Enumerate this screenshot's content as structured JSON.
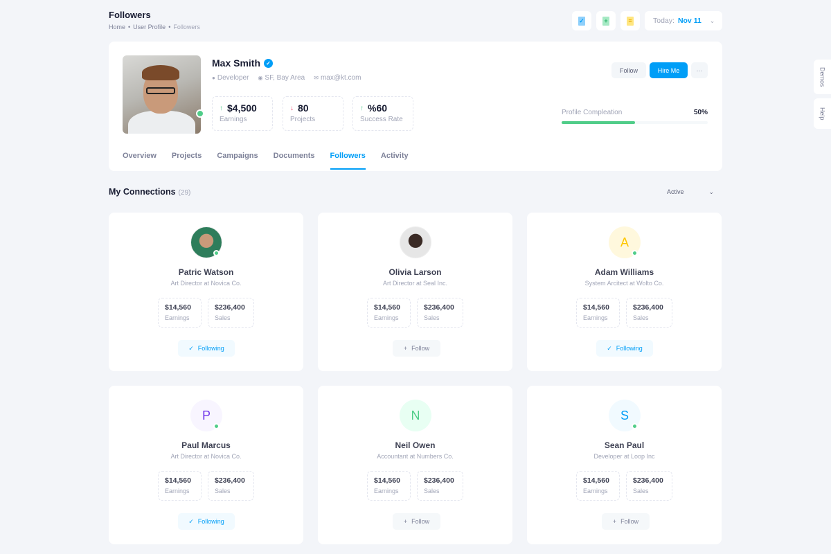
{
  "page": {
    "title": "Followers",
    "breadcrumb": [
      "Home",
      "User Profile",
      "Followers"
    ]
  },
  "toolbar": {
    "date_label": "Today:",
    "date_value": "Nov 11",
    "icons": [
      "file-check-icon",
      "file-add-icon",
      "file-text-icon"
    ]
  },
  "profile": {
    "name": "Max Smith",
    "role": "Developer",
    "location": "SF, Bay Area",
    "email": "max@kt.com",
    "stats": [
      {
        "value": "$4,500",
        "label": "Earnings",
        "trend": "up"
      },
      {
        "value": "80",
        "label": "Projects",
        "trend": "down"
      },
      {
        "value": "%60",
        "label": "Success Rate",
        "trend": "up"
      }
    ],
    "follow_label": "Follow",
    "hire_label": "Hire Me",
    "more_label": "···",
    "completion_label": "Profile Compleation",
    "completion_value": "50%",
    "completion": 50
  },
  "tabs": [
    {
      "label": "Overview"
    },
    {
      "label": "Projects"
    },
    {
      "label": "Campaigns"
    },
    {
      "label": "Documents"
    },
    {
      "label": "Followers",
      "active": true
    },
    {
      "label": "Activity"
    }
  ],
  "side": {
    "demos": "Demos",
    "help": "Help"
  },
  "connections": {
    "title": "My Connections",
    "count": "(29)",
    "filter": "Active",
    "items": [
      {
        "name": "Patric Watson",
        "role": "Art Director at Novica Co.",
        "earnings": "$14,560",
        "sales": "$236,400",
        "button": "Following",
        "following": true,
        "avatar": "photo",
        "online": true,
        "colors": [
          "#2e7d5b",
          "#c99a7a"
        ]
      },
      {
        "name": "Olivia Larson",
        "role": "Art Director at Seal Inc.",
        "earnings": "$14,560",
        "sales": "$236,400",
        "button": "Follow",
        "following": false,
        "avatar": "photo",
        "online": false,
        "colors": [
          "#e6e6e6",
          "#3a2a25"
        ]
      },
      {
        "name": "Adam Williams",
        "role": "System Arcitect at Wolto Co.",
        "earnings": "$14,560",
        "sales": "$236,400",
        "button": "Following",
        "following": true,
        "avatar": "A",
        "online": true,
        "colors": [
          "#fff8dd",
          "#ffc700"
        ]
      },
      {
        "name": "Paul Marcus",
        "role": "Art Director at Novica Co.",
        "earnings": "$14,560",
        "sales": "$236,400",
        "button": "Following",
        "following": true,
        "avatar": "P",
        "online": true,
        "colors": [
          "#f8f5ff",
          "#7239ea"
        ]
      },
      {
        "name": "Neil Owen",
        "role": "Accountant at Numbers Co.",
        "earnings": "$14,560",
        "sales": "$236,400",
        "button": "Follow",
        "following": false,
        "avatar": "N",
        "online": false,
        "colors": [
          "#e8fff3",
          "#50cd89"
        ]
      },
      {
        "name": "Sean Paul",
        "role": "Developer at Loop Inc",
        "earnings": "$14,560",
        "sales": "$236,400",
        "button": "Follow",
        "following": false,
        "avatar": "S",
        "online": true,
        "colors": [
          "#f1faff",
          "#009ef7"
        ]
      }
    ],
    "earnings_label": "Earnings",
    "sales_label": "Sales"
  }
}
